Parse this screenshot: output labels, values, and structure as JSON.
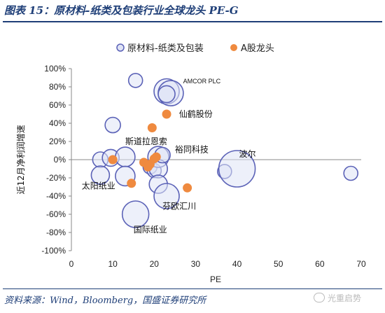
{
  "header": {
    "title": "图表 15：原材料-纸类及包装行业全球龙头 PE-G"
  },
  "footer": {
    "source": "资料来源：Wind，Bloomberg，国盛证券研究所",
    "watermark": "光重启势"
  },
  "chart_data": {
    "type": "scatter",
    "xlabel": "PE",
    "ylabel": "近12月净利润增速",
    "xlim": [
      0,
      70
    ],
    "ylim": [
      -100,
      100
    ],
    "x_ticks": [
      0,
      10,
      20,
      30,
      40,
      50,
      60,
      70
    ],
    "y_ticks": [
      "-100%",
      "-80%",
      "-60%",
      "-40%",
      "-20%",
      "0%",
      "20%",
      "40%",
      "60%",
      "80%",
      "100%"
    ],
    "grid": false,
    "legend_position": "top",
    "colors": {
      "bubble_stroke": "#5b62b7",
      "bubble_fill": "#dfe3f5",
      "dot": "#ef8a3f"
    },
    "series": [
      {
        "name": "原材料-纸类及包装",
        "style": "bubble",
        "points": [
          {
            "x": 15.5,
            "y": 87,
            "size": 10
          },
          {
            "x": 23.0,
            "y": 75,
            "size": 18
          },
          {
            "x": 24.0,
            "y": 73,
            "size": 18
          },
          {
            "x": 23.0,
            "y": 72,
            "size": 12
          },
          {
            "x": 10.0,
            "y": 38,
            "size": 11
          },
          {
            "x": 7.0,
            "y": 0,
            "size": 11
          },
          {
            "x": 9.5,
            "y": 2,
            "size": 12
          },
          {
            "x": 13.0,
            "y": 3,
            "size": 14
          },
          {
            "x": 7.0,
            "y": -17,
            "size": 13
          },
          {
            "x": 13.0,
            "y": -18,
            "size": 14
          },
          {
            "x": 19.0,
            "y": -8,
            "size": 10
          },
          {
            "x": 20.0,
            "y": -12,
            "size": 10
          },
          {
            "x": 21.0,
            "y": 3,
            "size": 15
          },
          {
            "x": 21.0,
            "y": -10,
            "size": 13
          },
          {
            "x": 22.0,
            "y": 5,
            "size": 11
          },
          {
            "x": 21.0,
            "y": -27,
            "size": 13
          },
          {
            "x": 23.0,
            "y": -40,
            "size": 18
          },
          {
            "x": 15.5,
            "y": -60,
            "size": 19
          },
          {
            "x": 37.0,
            "y": -13,
            "size": 10
          },
          {
            "x": 40.0,
            "y": -10,
            "size": 26
          },
          {
            "x": 67.5,
            "y": -15,
            "size": 10
          }
        ]
      },
      {
        "name": "A股龙头",
        "style": "dot",
        "points": [
          {
            "x": 23.0,
            "y": 50
          },
          {
            "x": 19.5,
            "y": 35
          },
          {
            "x": 10.0,
            "y": 0
          },
          {
            "x": 17.5,
            "y": -3
          },
          {
            "x": 18.5,
            "y": -8
          },
          {
            "x": 19.0,
            "y": -5
          },
          {
            "x": 20.0,
            "y": 1
          },
          {
            "x": 20.5,
            "y": 3
          },
          {
            "x": 14.5,
            "y": -26
          },
          {
            "x": 28.0,
            "y": -31
          }
        ]
      }
    ],
    "annotations": [
      {
        "text": "AMCOR PLC",
        "x": 27.0,
        "y": 87,
        "small": true
      },
      {
        "text": "仙鹤股份",
        "x": 26.0,
        "y": 50
      },
      {
        "text": "斯道拉恩索",
        "x": 13.0,
        "y": 20
      },
      {
        "text": "裕同科技",
        "x": 25.0,
        "y": 11
      },
      {
        "text": "波尔",
        "x": 40.5,
        "y": 6
      },
      {
        "text": "太阳纸业",
        "x": 2.5,
        "y": -29
      },
      {
        "text": "芬欧汇川",
        "x": 22.0,
        "y": -51
      },
      {
        "text": "国际纸业",
        "x": 15.0,
        "y": -77
      }
    ]
  }
}
